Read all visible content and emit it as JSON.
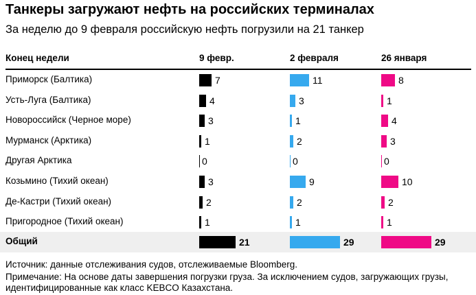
{
  "title": "Танкеры загружают нефть на российских терминалах",
  "subtitle": "За неделю до 9 февраля российскую нефть погрузили на 21 танкер",
  "source": "Источник: данные отслеживания судов, отслеживаемые Bloomberg.",
  "note": "Примечание: На основе даты завершения погрузки груза. За исключением судов, загружающих грузы, идентифицированные как класс KEBCO Казахстана.",
  "colors": {
    "week1": "#000000",
    "week2": "#36a9ee",
    "week3": "#ef0a86"
  },
  "chart_data": {
    "type": "table",
    "row_header": "Конец недели",
    "columns": [
      "9 февр.",
      "2 февраля",
      "26 января"
    ],
    "rows": [
      {
        "label": "Приморск (Балтика)",
        "values": [
          7,
          11,
          8
        ]
      },
      {
        "label": "Усть-Луга (Балтика)",
        "values": [
          4,
          3,
          1
        ]
      },
      {
        "label": "Новороссийск (Черное море)",
        "values": [
          3,
          1,
          4
        ]
      },
      {
        "label": "Мурманск (Арктика)",
        "values": [
          1,
          2,
          3
        ]
      },
      {
        "label": "Другая Арктика",
        "values": [
          0,
          0,
          0
        ]
      },
      {
        "label": "Козьмино (Тихий океан)",
        "values": [
          3,
          9,
          10
        ]
      },
      {
        "label": "Де-Кастри (Тихий океан)",
        "values": [
          2,
          2,
          2
        ]
      },
      {
        "label": "Пригородное (Тихий океан)",
        "values": [
          1,
          1,
          1
        ]
      }
    ],
    "total": {
      "label": "Общий",
      "values": [
        21,
        29,
        29
      ]
    }
  }
}
